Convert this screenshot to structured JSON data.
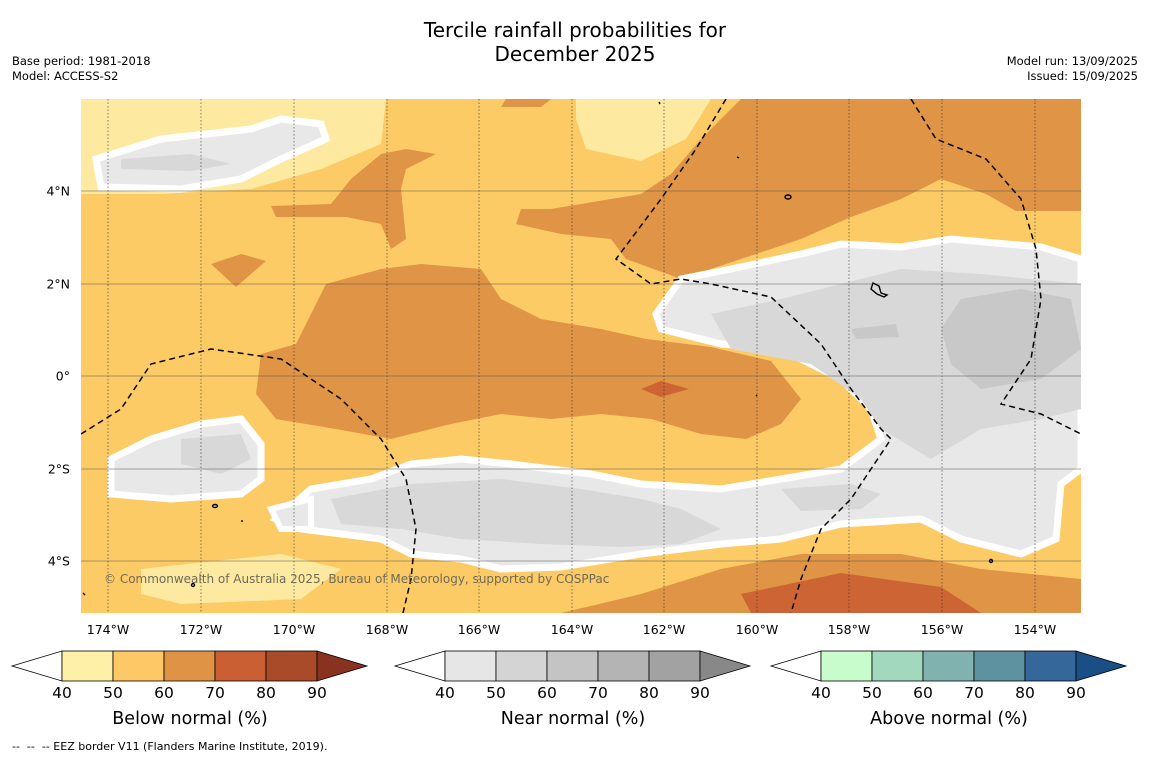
{
  "title": {
    "line1": "Tercile rainfall probabilities for",
    "line2": "December 2025"
  },
  "meta_left": {
    "base_period": "Base period: 1981-2018",
    "model": "Model: ACCESS-S2"
  },
  "meta_right": {
    "model_run": "Model run: 13/09/2025",
    "issued": "Issued: 15/09/2025"
  },
  "map": {
    "x_ticks": [
      "174°W",
      "172°W",
      "170°W",
      "168°W",
      "166°W",
      "164°W",
      "162°W",
      "160°W",
      "158°W",
      "156°W",
      "154°W"
    ],
    "y_ticks": [
      "4°N",
      "2°N",
      "0°",
      "2°S",
      "4°S"
    ],
    "copyright": "© Commonwealth of Australia 2025, Bureau of Meteorology, supported by COSPPac",
    "colors": {
      "below_40_50": "#fdeaa0",
      "below_50_60": "#fdcb66",
      "below_60_70": "#e09445",
      "below_70_80": "#cc6434",
      "near_40_50": "#e8e8e8",
      "near_50_60": "#d8d8d8",
      "near_60_70": "#c8c8c8",
      "land": "#000000",
      "eez_border": "#000000"
    }
  },
  "colorbars": [
    {
      "title": "Below normal (%)",
      "ticks": [
        "40",
        "50",
        "60",
        "70",
        "80",
        "90"
      ],
      "colors": [
        "#fff0a8",
        "#fdc865",
        "#de9345",
        "#c95f33",
        "#a94a28",
        "#8a3220"
      ]
    },
    {
      "title": "Near normal (%)",
      "ticks": [
        "40",
        "50",
        "60",
        "70",
        "80",
        "90"
      ],
      "colors": [
        "#e6e6e6",
        "#d4d4d4",
        "#c4c4c4",
        "#b4b4b4",
        "#a2a2a2",
        "#888888"
      ]
    },
    {
      "title": "Above normal (%)",
      "ticks": [
        "40",
        "50",
        "60",
        "70",
        "80",
        "90"
      ],
      "colors": [
        "#c9fccc",
        "#a2d8be",
        "#80b3b0",
        "#5e92a0",
        "#35679a",
        "#1a4f86"
      ]
    }
  ],
  "footnote": "--  --  -- EEZ border V11 (Flanders Marine Institute, 2019)."
}
